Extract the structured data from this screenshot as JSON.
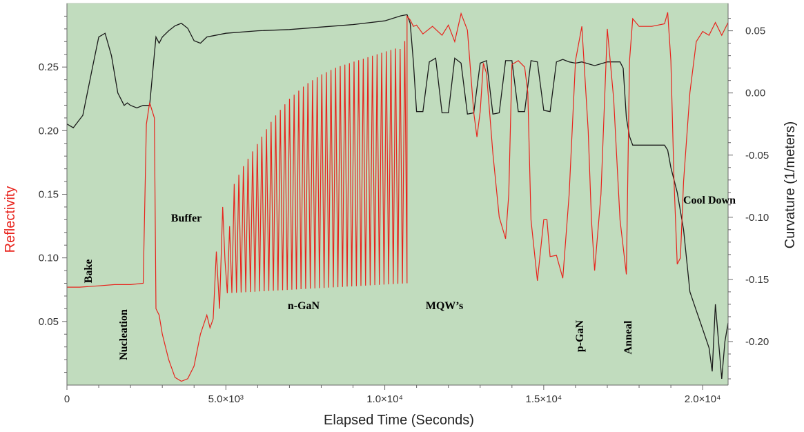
{
  "chart_data": {
    "type": "line",
    "title": "",
    "xlabel": "Elapsed Time (Seconds)",
    "ylabel_left": "Reflectivity",
    "ylabel_right": "Curvature (1/meters)",
    "xlim": [
      0,
      20800
    ],
    "ylim_left": [
      0,
      0.3
    ],
    "ylim_right": [
      -0.235,
      0.072
    ],
    "x_ticks": [
      0,
      5000,
      10000,
      15000,
      20000
    ],
    "x_tick_labels": [
      "0",
      "5.0×10³",
      "1.0×10⁴",
      "1.5×10⁴",
      "2.0×10⁴"
    ],
    "y_left_ticks": [
      0.05,
      0.1,
      0.15,
      0.2,
      0.25
    ],
    "y_left_tick_labels": [
      "0.05",
      "0.10",
      "0.15",
      "0.20",
      "0.25"
    ],
    "y_right_ticks": [
      0.05,
      0.0,
      -0.05,
      -0.1,
      -0.15,
      -0.2
    ],
    "y_right_tick_labels": [
      "0.05",
      "0.00",
      "-0.05",
      "-0.10",
      "-0.15",
      "-0.20"
    ],
    "background_color": "#c1dcbe",
    "series": [
      {
        "axis": "left",
        "color": "#e8231c",
        "x": [
          0,
          400,
          1000,
          1500,
          2000,
          2400,
          2500,
          2600,
          2750,
          2800,
          2900,
          3000,
          3200,
          3400,
          3600,
          3800,
          4000,
          4200,
          4400,
          4500,
          4600,
          4700,
          4800,
          4900,
          5000,
          5200,
          5500,
          6000,
          6500,
          7000,
          7500,
          8000,
          8500,
          9000,
          9500,
          10000,
          10400,
          10600,
          10700,
          10800,
          10900,
          11000,
          11200,
          11500,
          11800,
          12000,
          12200,
          12400,
          12600,
          12800,
          12900,
          13000,
          13100,
          13200,
          13400,
          13600,
          13800,
          13900,
          14000,
          14200,
          14400,
          14500,
          14600,
          14800,
          15000,
          15100,
          15200,
          15400,
          15600,
          15800,
          16000,
          16200,
          16400,
          16500,
          16600,
          16800,
          17000,
          17200,
          17400,
          17600,
          17700,
          17800,
          18000,
          18400,
          18800,
          18900,
          19000,
          19100,
          19200,
          19300,
          19400,
          19600,
          19800,
          20000,
          20200,
          20400,
          20600,
          20800
        ],
        "y": [
          0.077,
          0.077,
          0.078,
          0.079,
          0.079,
          0.08,
          0.205,
          0.222,
          0.21,
          0.06,
          0.055,
          0.04,
          0.02,
          0.006,
          0.003,
          0.005,
          0.015,
          0.04,
          0.055,
          0.045,
          0.052,
          0.105,
          0.06,
          0.14,
          0.082,
          0.155,
          0.17,
          0.19,
          0.21,
          0.225,
          0.236,
          0.244,
          0.25,
          0.254,
          0.258,
          0.262,
          0.265,
          0.263,
          0.29,
          0.287,
          0.282,
          0.283,
          0.276,
          0.282,
          0.275,
          0.283,
          0.27,
          0.292,
          0.279,
          0.214,
          0.195,
          0.215,
          0.253,
          0.245,
          0.182,
          0.132,
          0.115,
          0.15,
          0.252,
          0.255,
          0.25,
          0.23,
          0.13,
          0.082,
          0.13,
          0.13,
          0.101,
          0.102,
          0.084,
          0.15,
          0.255,
          0.282,
          0.2,
          0.13,
          0.09,
          0.15,
          0.28,
          0.225,
          0.13,
          0.087,
          0.255,
          0.288,
          0.282,
          0.282,
          0.284,
          0.293,
          0.255,
          0.16,
          0.095,
          0.1,
          0.16,
          0.23,
          0.27,
          0.278,
          0.275,
          0.285,
          0.275,
          0.285
        ],
        "oscillation": {
          "x_start": 4900,
          "x_end": 10700,
          "cycles": 40,
          "floor_start": 0.072,
          "floor_end": 0.08
        }
      },
      {
        "axis": "right",
        "color": "#1a1a1a",
        "x": [
          0,
          200,
          500,
          800,
          1000,
          1200,
          1400,
          1600,
          1800,
          1900,
          2000,
          2200,
          2400,
          2600,
          2800,
          2900,
          3000,
          3200,
          3400,
          3600,
          3800,
          4000,
          4200,
          4400,
          4600,
          5000,
          6000,
          7000,
          8000,
          9000,
          10000,
          10500,
          10700,
          10800,
          10900,
          11000,
          11200,
          11400,
          11600,
          11800,
          12000,
          12200,
          12400,
          12600,
          12800,
          13000,
          13200,
          13400,
          13600,
          13800,
          14000,
          14200,
          14400,
          14600,
          14800,
          15000,
          15200,
          15400,
          15600,
          15800,
          16000,
          16200,
          16600,
          17000,
          17400,
          17500,
          17600,
          17700,
          17800,
          18000,
          18400,
          18800,
          18900,
          19000,
          19200,
          19400,
          19600,
          19800,
          20000,
          20200,
          20300,
          20400,
          20500,
          20600,
          20700,
          20800
        ],
        "y": [
          -0.025,
          -0.028,
          -0.018,
          0.02,
          0.045,
          0.048,
          0.03,
          0.0,
          -0.01,
          -0.008,
          -0.01,
          -0.012,
          -0.01,
          -0.01,
          0.045,
          0.04,
          0.045,
          0.05,
          0.054,
          0.056,
          0.052,
          0.042,
          0.04,
          0.045,
          0.046,
          0.048,
          0.05,
          0.051,
          0.053,
          0.055,
          0.058,
          0.062,
          0.063,
          0.056,
          0.025,
          -0.015,
          -0.015,
          0.025,
          0.028,
          -0.016,
          -0.016,
          0.028,
          0.024,
          -0.017,
          -0.016,
          0.024,
          0.026,
          -0.017,
          -0.016,
          0.026,
          0.026,
          -0.015,
          -0.015,
          0.026,
          0.025,
          -0.014,
          -0.015,
          0.025,
          0.027,
          0.025,
          0.024,
          0.025,
          0.022,
          0.025,
          0.025,
          0.02,
          -0.02,
          -0.035,
          -0.042,
          -0.042,
          -0.042,
          -0.042,
          -0.046,
          -0.06,
          -0.08,
          -0.11,
          -0.16,
          -0.175,
          -0.19,
          -0.205,
          -0.224,
          -0.17,
          -0.2,
          -0.23,
          -0.2,
          -0.185
        ]
      }
    ],
    "annotations": [
      "Bake",
      "Nucleation",
      "Buffer",
      "n-GaN",
      "MQW’s",
      "p-GaN",
      "Anneal",
      "Cool Down"
    ]
  }
}
